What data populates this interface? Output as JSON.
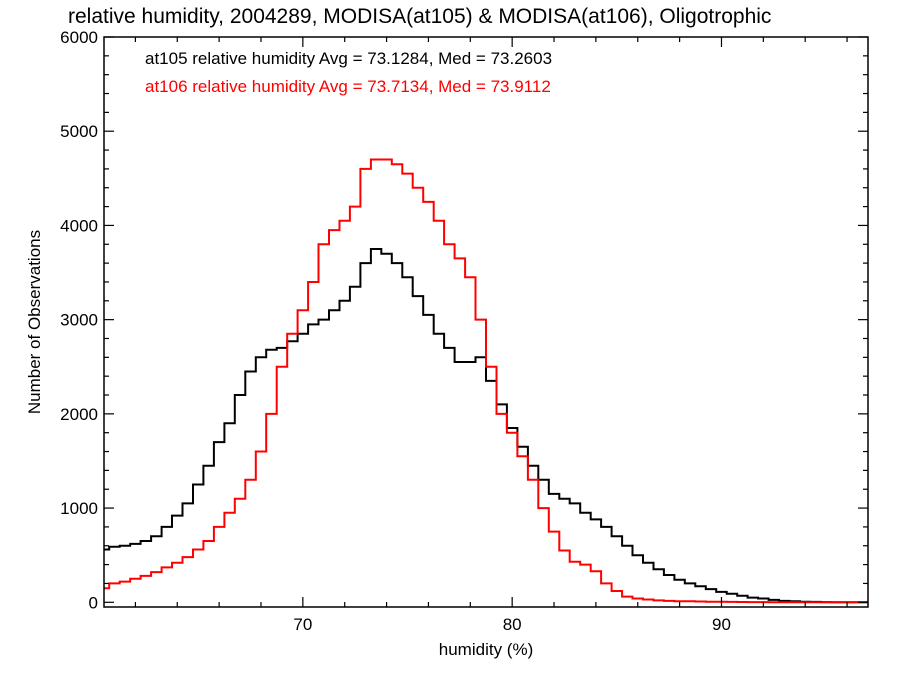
{
  "chart_data": {
    "type": "line",
    "step": true,
    "title": "relative humidity, 2004289, MODISA(at105) & MODISA(at106), Oligotrophic",
    "xlabel": "humidity (%)",
    "ylabel": "Number of Observations",
    "xlim": [
      60.5,
      97
    ],
    "ylim": [
      -50,
      6000
    ],
    "xticks": [
      70,
      80,
      90
    ],
    "yticks": [
      0,
      1000,
      2000,
      3000,
      4000,
      5000,
      6000
    ],
    "grid": false,
    "legend_position": "top-left",
    "series": [
      {
        "name": "at105 relative humidity Avg = 73.1284, Med = 73.2603",
        "color": "#000000",
        "x": [
          60.5,
          61.0,
          61.5,
          62.0,
          62.5,
          63.0,
          63.5,
          64.0,
          64.5,
          65.0,
          65.5,
          66.0,
          66.5,
          67.0,
          67.5,
          68.0,
          68.5,
          69.0,
          69.5,
          70.0,
          70.5,
          71.0,
          71.5,
          72.0,
          72.5,
          73.0,
          73.5,
          74.0,
          74.5,
          75.0,
          75.5,
          76.0,
          76.5,
          77.0,
          77.5,
          78.0,
          78.5,
          79.0,
          79.5,
          80.0,
          80.5,
          81.0,
          81.5,
          82.0,
          82.5,
          83.0,
          83.5,
          84.0,
          84.5,
          85.0,
          85.5,
          86.0,
          86.5,
          87.0,
          87.5,
          88.0,
          88.5,
          89.0,
          89.5,
          90.0,
          90.5,
          91.0,
          91.5,
          92.0,
          92.5,
          93.0,
          93.5,
          94.0,
          94.5,
          95.0,
          95.5,
          96.0,
          96.5,
          97.0
        ],
        "values": [
          560,
          590,
          600,
          620,
          650,
          700,
          800,
          920,
          1050,
          1250,
          1450,
          1700,
          1900,
          2200,
          2450,
          2600,
          2680,
          2700,
          2770,
          2850,
          2950,
          3000,
          3100,
          3200,
          3350,
          3600,
          3750,
          3700,
          3600,
          3450,
          3250,
          3050,
          2850,
          2700,
          2550,
          2550,
          2600,
          2350,
          2100,
          1850,
          1650,
          1450,
          1300,
          1150,
          1100,
          1050,
          950,
          880,
          800,
          700,
          600,
          500,
          420,
          350,
          290,
          240,
          200,
          170,
          140,
          110,
          90,
          70,
          50,
          40,
          25,
          15,
          10,
          6,
          4,
          2,
          1,
          0,
          0,
          0
        ]
      },
      {
        "name": "at106 relative humidity Avg = 73.7134, Med = 73.9112",
        "color": "#ff0000",
        "x": [
          60.5,
          61.0,
          61.5,
          62.0,
          62.5,
          63.0,
          63.5,
          64.0,
          64.5,
          65.0,
          65.5,
          66.0,
          66.5,
          67.0,
          67.5,
          68.0,
          68.5,
          69.0,
          69.5,
          70.0,
          70.5,
          71.0,
          71.5,
          72.0,
          72.5,
          73.0,
          73.5,
          74.0,
          74.5,
          75.0,
          75.5,
          76.0,
          76.5,
          77.0,
          77.5,
          78.0,
          78.5,
          79.0,
          79.5,
          80.0,
          80.5,
          81.0,
          81.5,
          82.0,
          82.5,
          83.0,
          83.5,
          84.0,
          84.5,
          85.0,
          85.5,
          86.0,
          86.5,
          87.0,
          87.5,
          88.0,
          88.5,
          89.0,
          89.5,
          90.0,
          90.5,
          91.0,
          91.5,
          92.0,
          92.5,
          93.0,
          93.5,
          94.0,
          94.5,
          95.0,
          95.5,
          96.0,
          96.5,
          97.0
        ],
        "values": [
          150,
          200,
          220,
          250,
          280,
          320,
          370,
          420,
          480,
          560,
          650,
          800,
          950,
          1100,
          1300,
          1600,
          2000,
          2500,
          2850,
          3100,
          3400,
          3800,
          3950,
          4050,
          4200,
          4600,
          4700,
          4700,
          4650,
          4550,
          4400,
          4250,
          4050,
          3800,
          3650,
          3450,
          3000,
          2500,
          2000,
          1800,
          1550,
          1300,
          1000,
          750,
          550,
          430,
          400,
          330,
          200,
          120,
          60,
          40,
          30,
          20,
          15,
          12,
          10,
          8,
          6,
          5,
          4,
          3,
          2,
          2,
          1,
          1,
          0,
          0,
          0,
          0,
          0,
          0,
          0,
          0
        ]
      }
    ]
  }
}
